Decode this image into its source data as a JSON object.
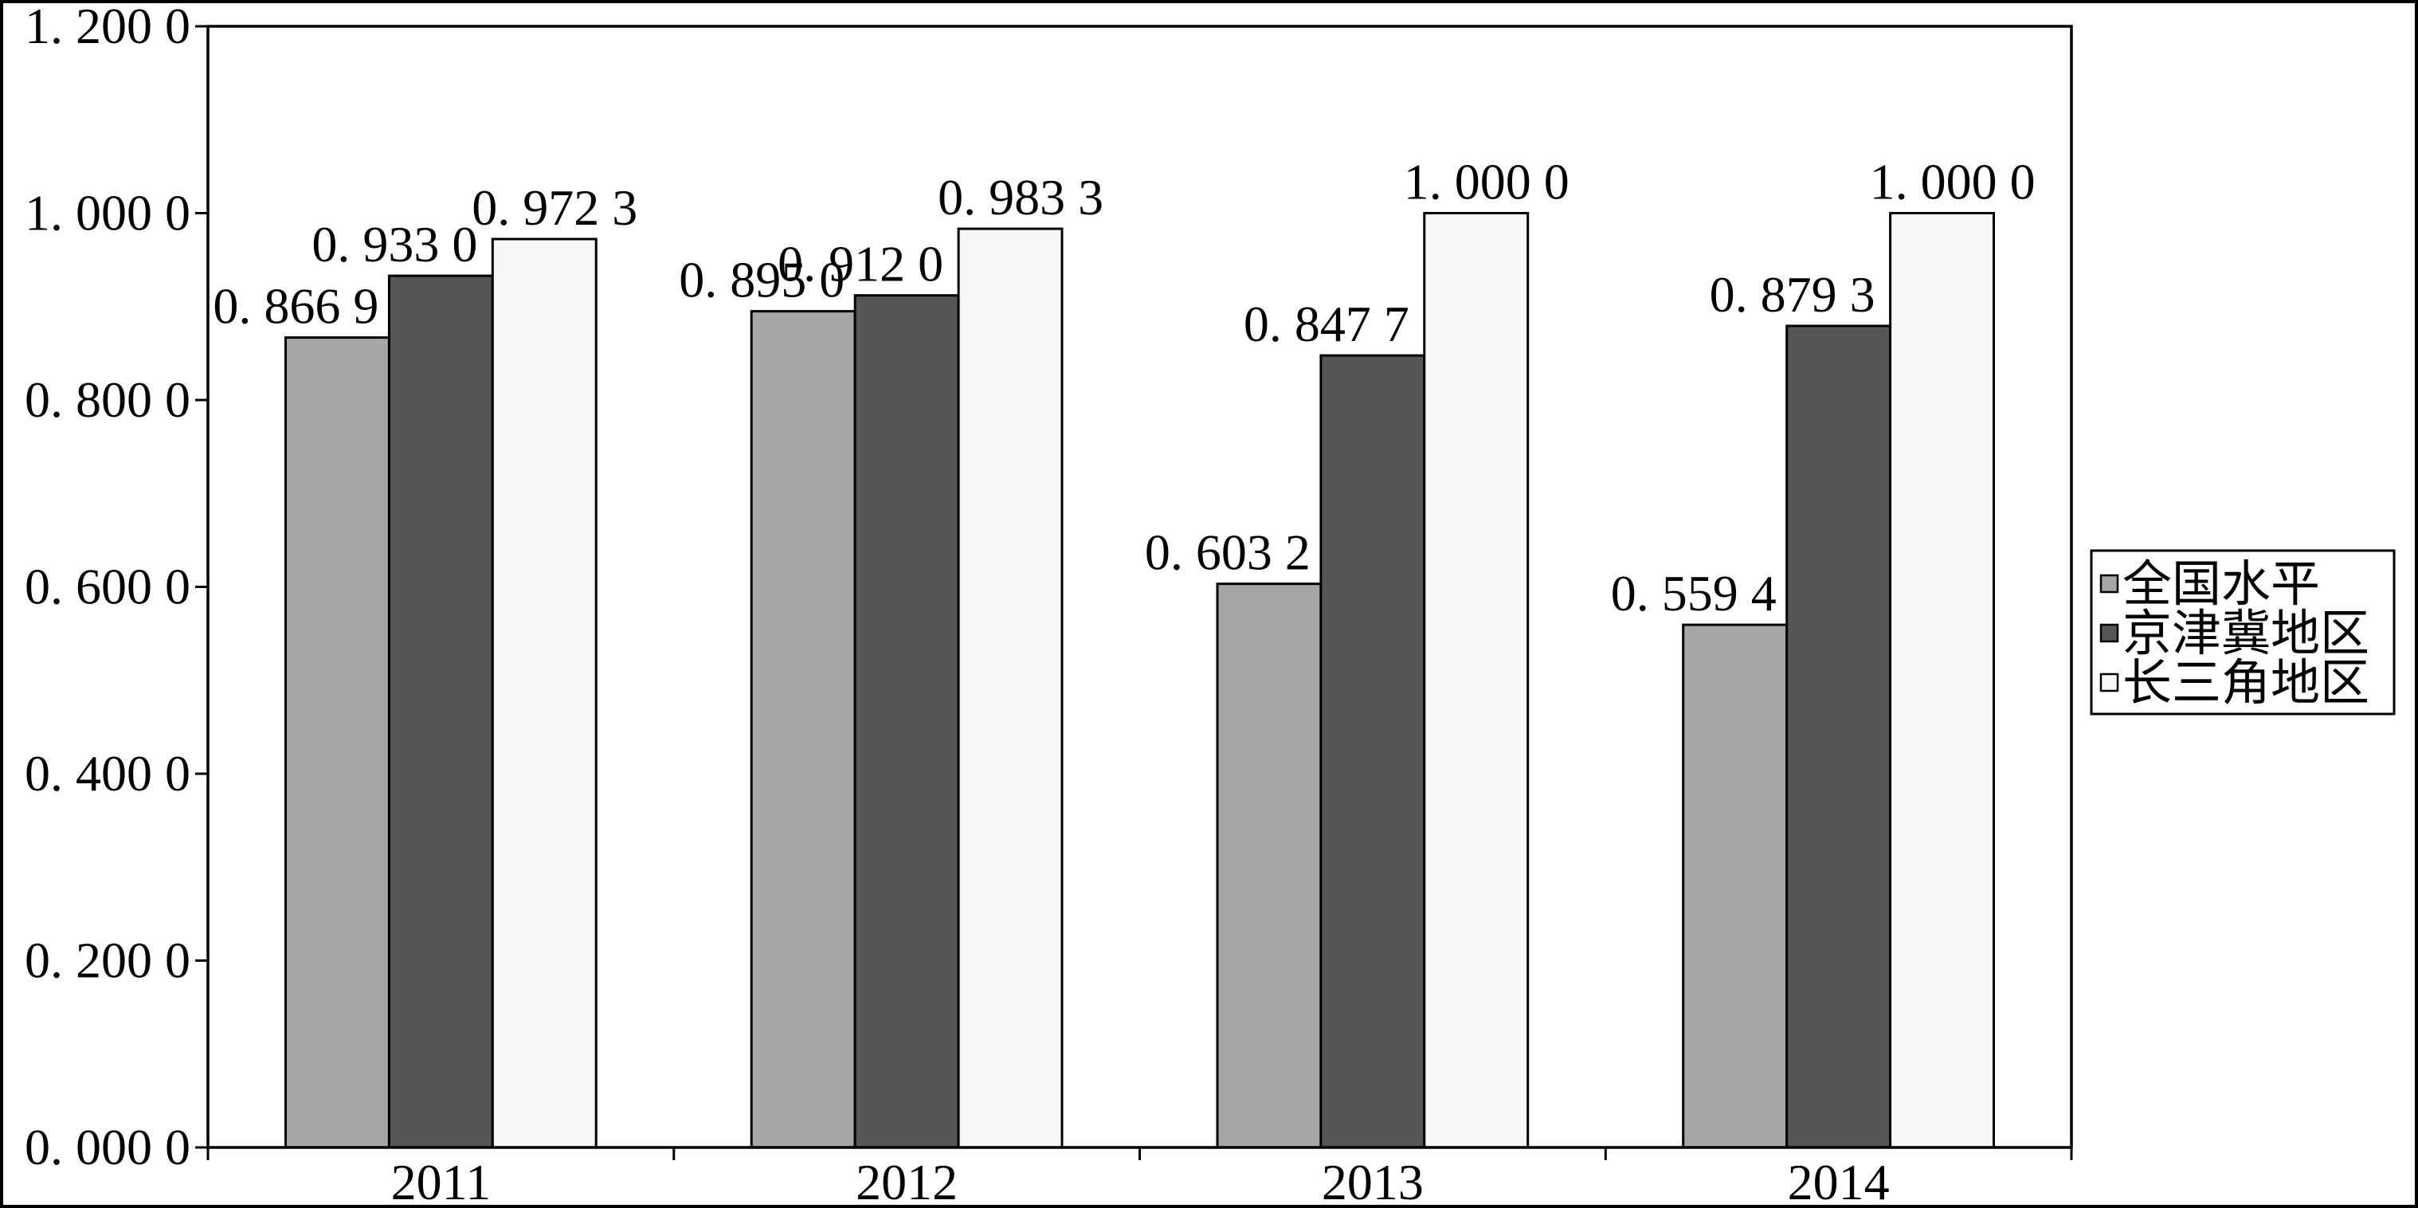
{
  "chart_data": {
    "type": "bar",
    "categories": [
      "2011",
      "2012",
      "2013",
      "2014"
    ],
    "series": [
      {
        "name": "全国水平",
        "color": "#a6a6a6",
        "values": [
          0.8669,
          0.895,
          0.6032,
          0.5594
        ],
        "labels": [
          "0. 866 9",
          "0. 895 0",
          "0. 603 2",
          "0. 559 4"
        ]
      },
      {
        "name": "京津冀地区",
        "color": "#565656",
        "values": [
          0.933,
          0.912,
          0.8477,
          0.8793
        ],
        "labels": [
          "0. 933 0",
          "0. 912 0",
          "0. 847 7",
          "0. 879 3"
        ]
      },
      {
        "name": "长三角地区",
        "color": "#f8f8f8",
        "values": [
          0.9723,
          0.9833,
          1.0,
          1.0
        ],
        "labels": [
          "0. 972 3",
          "0. 983 3",
          "1. 000 0",
          "1. 000 0"
        ]
      }
    ],
    "ylim": [
      0,
      1.2
    ],
    "yticks": [
      0,
      0.2,
      0.4,
      0.6,
      0.8,
      1.0,
      1.2
    ],
    "ytick_labels": [
      "0. 000 0",
      "0. 200 0",
      "0. 400 0",
      "0. 600 0",
      "0. 800 0",
      "1. 000 0",
      "1. 200 0"
    ],
    "grid": false,
    "legend": "right"
  }
}
